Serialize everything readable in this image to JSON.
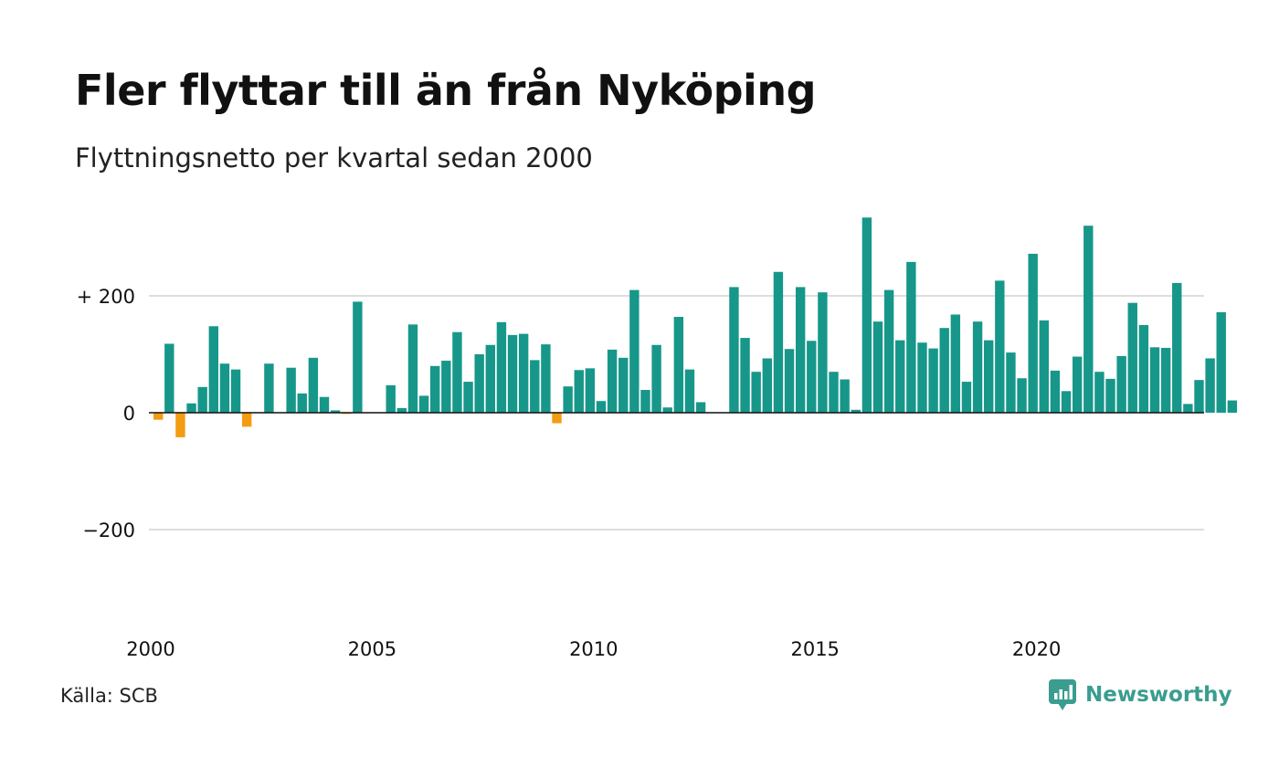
{
  "header": {
    "title": "Fler flyttar till än från Nyköping",
    "subtitle": "Flyttningsnetto per kvartal sedan 2000"
  },
  "footer": {
    "source": "Källa: SCB",
    "brand": "Newsworthy",
    "brand_icon": "chart-speech-bubble-icon"
  },
  "colors": {
    "positive": "#17978a",
    "negative": "#f39c12",
    "grid": "#dddddd",
    "axis": "#111111",
    "brand": "#3a9d8f"
  },
  "chart_data": {
    "type": "bar",
    "title": "Fler flyttar till än från Nyköping",
    "subtitle": "Flyttningsnetto per kvartal sedan 2000",
    "xlabel": "",
    "ylabel": "",
    "grid": true,
    "legend": "none",
    "ylim": [
      -380,
      340
    ],
    "x_start": 2000,
    "periods_per_year": 4,
    "x_ticks": [
      2000,
      2005,
      2010,
      2015,
      2020
    ],
    "x_tick_labels": [
      "2000",
      "2005",
      "2010",
      "2015",
      "2020"
    ],
    "y_ticks": [
      200,
      0,
      -200
    ],
    "y_tick_labels": [
      "+ 200",
      "0",
      "−200"
    ],
    "values": [
      -12,
      118,
      -42,
      16,
      44,
      148,
      84,
      74,
      -24,
      0,
      84,
      0,
      77,
      33,
      94,
      27,
      4,
      -2,
      190,
      0,
      0,
      47,
      8,
      151,
      29,
      80,
      89,
      138,
      53,
      100,
      116,
      155,
      133,
      135,
      90,
      117,
      -18,
      45,
      73,
      76,
      20,
      108,
      94,
      210,
      39,
      116,
      9,
      164,
      74,
      18,
      0,
      0,
      215,
      128,
      70,
      93,
      241,
      109,
      215,
      123,
      206,
      70,
      57,
      5,
      334,
      156,
      210,
      124,
      258,
      120,
      110,
      145,
      168,
      53,
      156,
      124,
      226,
      103,
      59,
      272,
      158,
      72,
      37,
      96,
      320,
      70,
      58,
      97,
      188,
      150,
      112,
      111,
      222,
      15,
      56,
      93,
      172,
      21
    ]
  }
}
